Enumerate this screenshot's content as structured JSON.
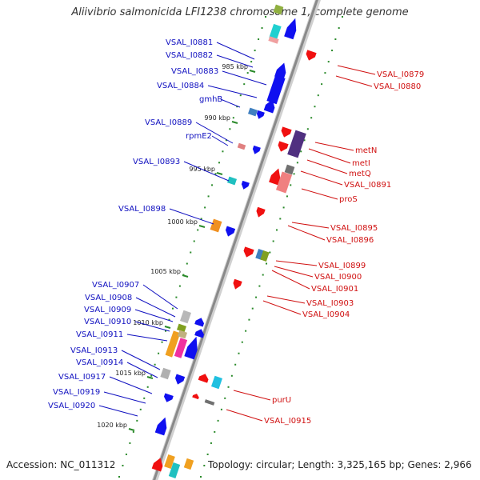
{
  "title": "Aliivibrio salmonicida LFI1238 chromosome 1, complete genome",
  "accession": "Accession: NC_011312",
  "summary": "Topology: circular; Length: 3,325,165 bp; Genes: 2,966",
  "colors": {
    "left_label": "#1010c0",
    "right_label": "#d01010",
    "backbone": "#8a8a8a",
    "ticks": "#2a8a2a"
  },
  "kbp_ticks": [
    "985 kbp",
    "990 kbp",
    "995 kbp",
    "1000 kbp",
    "1005 kbp",
    "1010 kbp",
    "1015 kbp",
    "1020 kbp"
  ],
  "left_genes": [
    "VSAL_I0881",
    "VSAL_I0882",
    "VSAL_I0883",
    "VSAL_I0884",
    "gmhB",
    "VSAL_I0889",
    "rpmE2",
    "VSAL_I0893",
    "VSAL_I0898",
    "VSAL_I0907",
    "VSAL_I0908",
    "VSAL_I0909",
    "VSAL_I0910",
    "VSAL_I0911",
    "VSAL_I0913",
    "VSAL_I0914",
    "VSAL_I0917",
    "VSAL_I0919",
    "VSAL_I0920"
  ],
  "right_genes": [
    "VSAL_I0879",
    "VSAL_I0880",
    "metN",
    "metI",
    "metQ",
    "VSAL_I0891",
    "proS",
    "VSAL_I0895",
    "VSAL_I0896",
    "VSAL_I0899",
    "VSAL_I0900",
    "VSAL_I0901",
    "VSAL_I0903",
    "VSAL_I0904",
    "purU",
    "VSAL_I0915"
  ]
}
